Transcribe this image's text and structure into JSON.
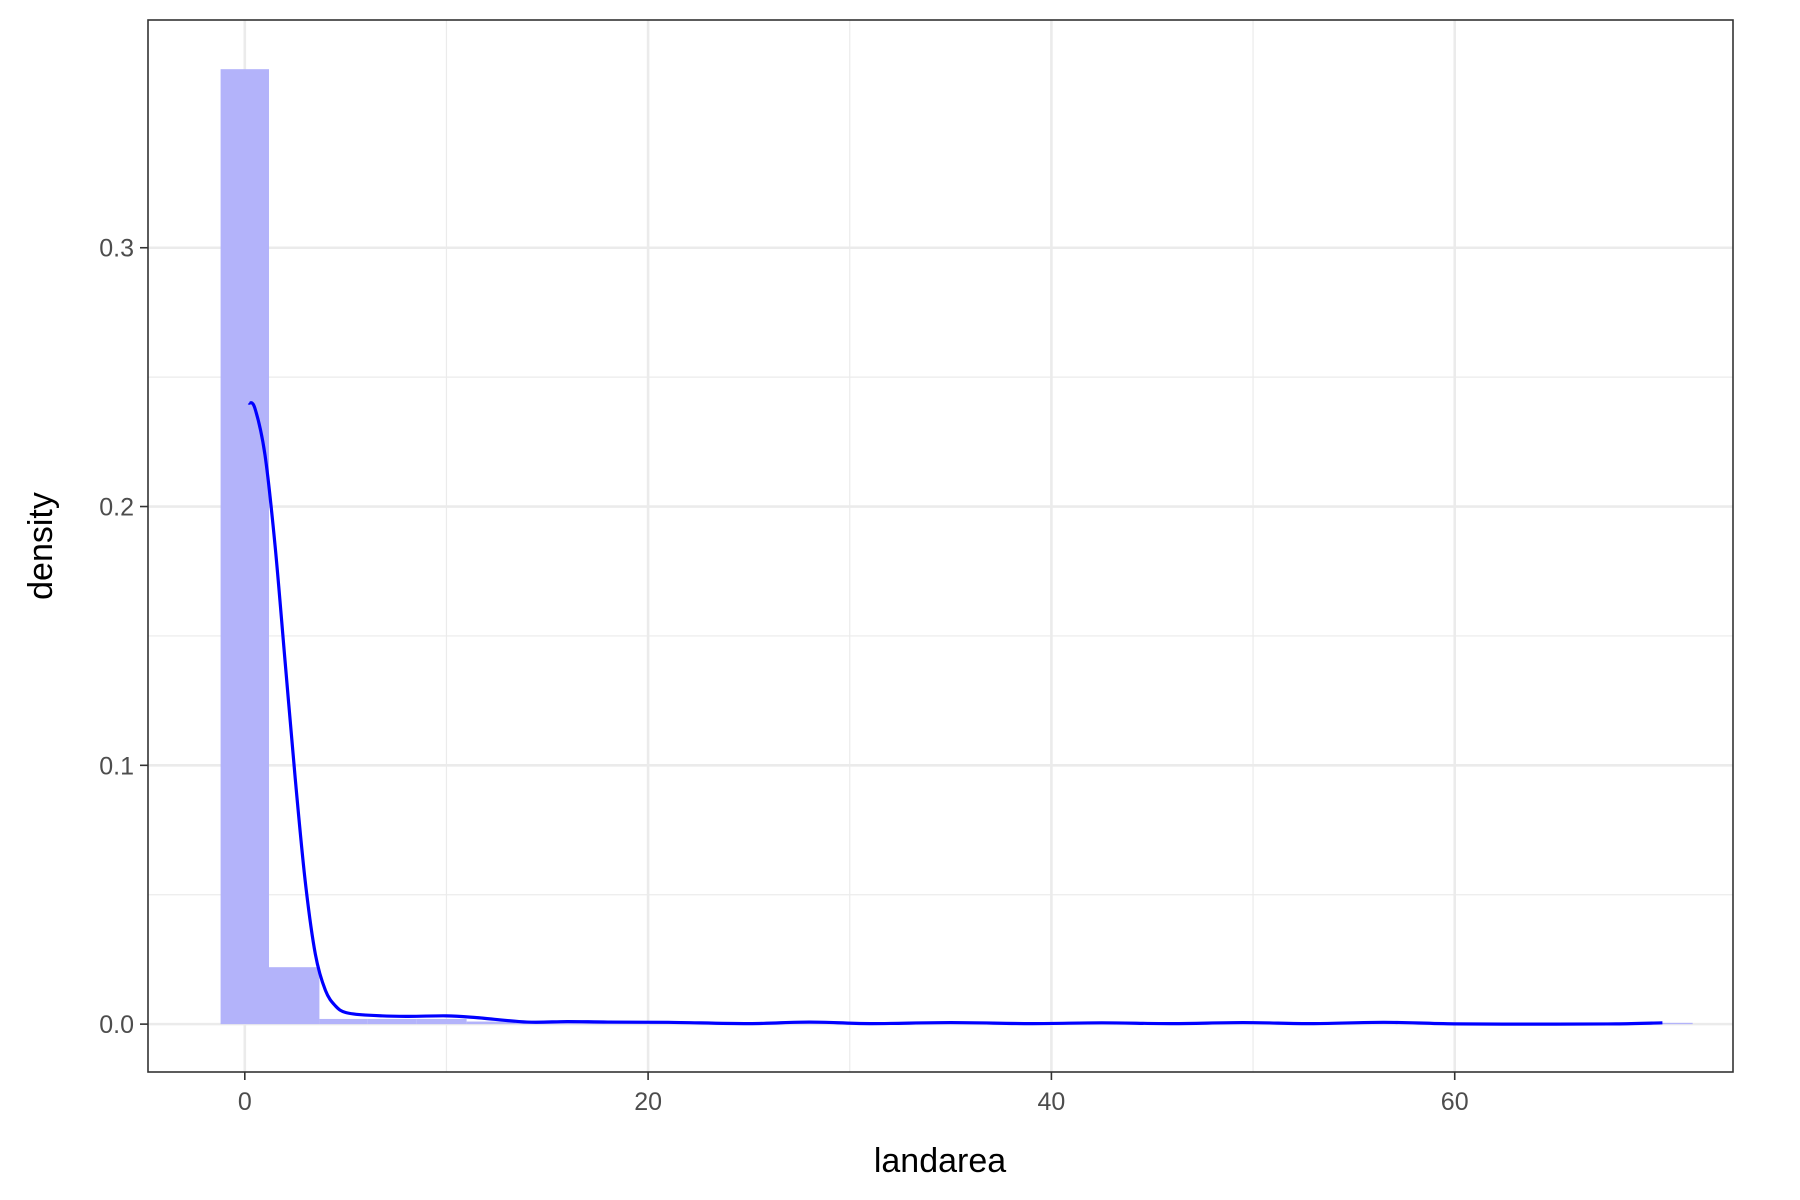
{
  "chart_data": {
    "type": "histogram",
    "xlabel": "landarea",
    "ylabel": "density",
    "xlim": [
      -4.8,
      73.8
    ],
    "ylim": [
      -0.0185,
      0.388
    ],
    "x_ticks": [
      0,
      20,
      40,
      60
    ],
    "x_tick_labels": [
      "0",
      "20",
      "40",
      "60"
    ],
    "y_ticks": [
      0.0,
      0.1,
      0.2,
      0.3
    ],
    "y_tick_labels": [
      "0.0",
      "0.1",
      "0.2",
      "0.3"
    ],
    "grid": true,
    "histogram": {
      "color": "#b3b3fa",
      "bins": [
        {
          "x0": -1.2,
          "x1": 1.2,
          "density": 0.369
        },
        {
          "x0": 1.2,
          "x1": 3.7,
          "density": 0.022
        },
        {
          "x0": 3.7,
          "x1": 6.1,
          "density": 0.002
        },
        {
          "x0": 6.1,
          "x1": 8.5,
          "density": 0.002
        },
        {
          "x0": 8.5,
          "x1": 11.0,
          "density": 0.002
        },
        {
          "x0": 11.0,
          "x1": 13.4,
          "density": 0.001
        },
        {
          "x0": 13.4,
          "x1": 71.8,
          "density": 0.0005
        }
      ]
    },
    "density_curve": {
      "color": "#0000ff",
      "points": [
        [
          0.2,
          0.24
        ],
        [
          0.5,
          0.238
        ],
        [
          1.0,
          0.22
        ],
        [
          1.5,
          0.185
        ],
        [
          2.0,
          0.14
        ],
        [
          2.5,
          0.095
        ],
        [
          3.0,
          0.055
        ],
        [
          3.5,
          0.027
        ],
        [
          4.0,
          0.013
        ],
        [
          4.5,
          0.007
        ],
        [
          5.0,
          0.0045
        ],
        [
          6.0,
          0.0035
        ],
        [
          8.0,
          0.003
        ],
        [
          10.0,
          0.0032
        ],
        [
          11.5,
          0.0025
        ],
        [
          14.0,
          0.0008
        ],
        [
          16.0,
          0.001
        ],
        [
          18.0,
          0.0008
        ],
        [
          21.0,
          0.0007
        ],
        [
          25.0,
          0.0002
        ],
        [
          28.0,
          0.0008
        ],
        [
          31.0,
          0.0002
        ],
        [
          35.0,
          0.0006
        ],
        [
          39.0,
          0.0002
        ],
        [
          42.5,
          0.0005
        ],
        [
          46.0,
          0.0002
        ],
        [
          49.5,
          0.0006
        ],
        [
          53.0,
          0.0002
        ],
        [
          56.5,
          0.0007
        ],
        [
          60.0,
          0.0001
        ],
        [
          65.0,
          0.0
        ],
        [
          68.0,
          0.0001
        ],
        [
          70.3,
          0.0005
        ]
      ]
    }
  }
}
